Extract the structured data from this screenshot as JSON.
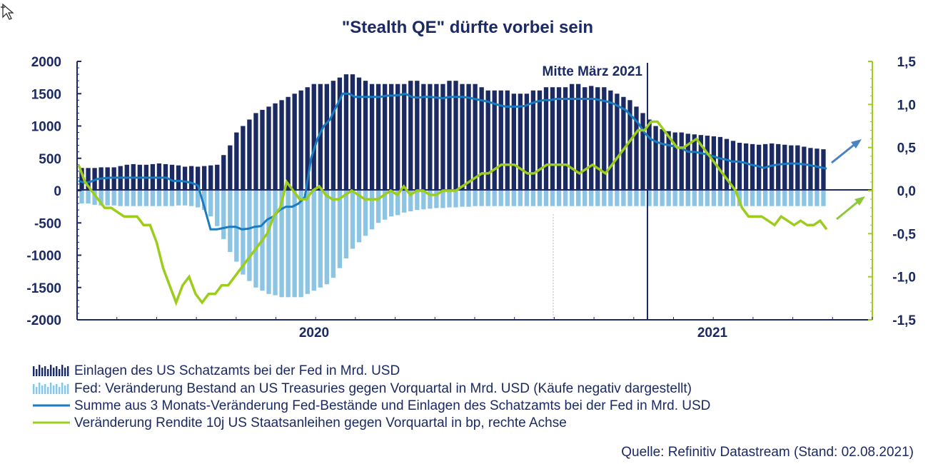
{
  "chart_data": {
    "type": "bar",
    "title": "\"Stealth QE\" dürfte vorbei sein",
    "x_ticks": [
      "2020",
      "2021"
    ],
    "y_left": {
      "ylim": [
        -2000,
        2000
      ],
      "ticks": [
        "2000",
        "1500",
        "1000",
        "500",
        "0",
        "-500",
        "-1000",
        "-1500",
        "-2000"
      ]
    },
    "y_right": {
      "ylim": [
        -1.5,
        1.5
      ],
      "ticks": [
        "1,5",
        "1,0",
        "0,5",
        "0,0",
        "-0,5",
        "-1,0",
        "-1,5"
      ]
    },
    "annotation": "Mitte März 2021",
    "colors": {
      "deposits": "#1b2a63",
      "fed_change": "#8cc4e4",
      "sum": "#1a7bbf",
      "yield": "#9ccc1c",
      "text": "#1b2a63"
    },
    "series": [
      {
        "name": "Einlagen des US Schatzamts bei der Fed in Mrd. USD",
        "kind": "bar",
        "axis": "left",
        "values": [
          350,
          350,
          350,
          360,
          360,
          360,
          380,
          400,
          410,
          400,
          400,
          410,
          420,
          410,
          400,
          390,
          370,
          380,
          370,
          380,
          390,
          400,
          550,
          700,
          900,
          1000,
          1100,
          1200,
          1250,
          1300,
          1350,
          1400,
          1450,
          1500,
          1550,
          1600,
          1650,
          1650,
          1650,
          1700,
          1750,
          1800,
          1800,
          1750,
          1700,
          1650,
          1650,
          1650,
          1650,
          1650,
          1650,
          1700,
          1700,
          1650,
          1650,
          1650,
          1650,
          1700,
          1700,
          1650,
          1650,
          1650,
          1600,
          1550,
          1550,
          1550,
          1550,
          1500,
          1500,
          1500,
          1550,
          1550,
          1600,
          1600,
          1600,
          1600,
          1650,
          1650,
          1600,
          1620,
          1600,
          1600,
          1550,
          1500,
          1450,
          1400,
          1300,
          1200,
          1100,
          1000,
          950,
          920,
          900,
          900,
          880,
          870,
          860,
          850,
          840,
          830,
          800,
          770,
          740,
          730,
          720,
          710,
          720,
          730,
          720,
          710,
          700,
          700,
          680,
          660,
          650,
          640
        ]
      },
      {
        "name": "Fed: Veränderung Bestand an US Treasuries gegen Vorquartal in Mrd. USD (Käufe negativ dargestellt)",
        "kind": "bar",
        "axis": "left",
        "values": [
          -200,
          -200,
          -220,
          -230,
          -230,
          -230,
          -240,
          -240,
          -240,
          -240,
          -240,
          -240,
          -240,
          -240,
          -240,
          -230,
          -230,
          -240,
          -260,
          -300,
          -400,
          -550,
          -750,
          -950,
          -1100,
          -1300,
          -1400,
          -1500,
          -1550,
          -1600,
          -1620,
          -1650,
          -1650,
          -1650,
          -1650,
          -1600,
          -1550,
          -1500,
          -1450,
          -1350,
          -1200,
          -1050,
          -900,
          -800,
          -700,
          -600,
          -500,
          -450,
          -400,
          -380,
          -340,
          -320,
          -300,
          -290,
          -280,
          -270,
          -270,
          -260,
          -260,
          -250,
          -250,
          -240,
          -240,
          -240,
          -240,
          -240,
          -240,
          -240,
          -240,
          -240,
          -240,
          -240,
          -240,
          -240,
          -240,
          -240,
          -240,
          -240,
          -240,
          -240,
          -240,
          -240,
          -240,
          -240,
          -240,
          -240,
          -240,
          -240,
          -240,
          -240,
          -240,
          -240,
          -240,
          -240,
          -240,
          -240,
          -240,
          -240,
          -240,
          -240,
          -240,
          -240,
          -240,
          -240,
          -240,
          -240,
          -240,
          -240,
          -240,
          -240,
          -240,
          -240,
          -240,
          -240,
          -240,
          -240
        ]
      },
      {
        "name": "Summe aus 3 Monats-Veränderung Fed-Bestände und Einlagen des Schatzamts bei der Fed in Mrd. USD",
        "kind": "line",
        "axis": "left",
        "values": [
          150,
          120,
          140,
          180,
          190,
          200,
          200,
          200,
          200,
          200,
          200,
          200,
          200,
          200,
          200,
          150,
          150,
          140,
          120,
          80,
          -250,
          -600,
          -600,
          -580,
          -560,
          -560,
          -600,
          -590,
          -560,
          -550,
          -450,
          -400,
          -300,
          -250,
          -250,
          -200,
          -100,
          500,
          800,
          1000,
          1100,
          1300,
          1500,
          1500,
          1450,
          1450,
          1450,
          1450,
          1450,
          1470,
          1470,
          1480,
          1500,
          1450,
          1440,
          1450,
          1450,
          1440,
          1430,
          1450,
          1450,
          1450,
          1440,
          1420,
          1400,
          1380,
          1350,
          1320,
          1300,
          1300,
          1300,
          1310,
          1350,
          1380,
          1400,
          1400,
          1420,
          1420,
          1420,
          1420,
          1420,
          1420,
          1420,
          1400,
          1380,
          1350,
          1300,
          1250,
          1150,
          1050,
          900,
          800,
          750,
          720,
          700,
          680,
          650,
          600,
          600,
          580,
          560,
          530,
          500,
          480,
          450,
          450,
          430,
          400,
          380,
          350,
          380,
          400,
          410,
          420,
          420,
          410,
          400,
          380,
          360,
          340
        ]
      },
      {
        "name": "Veränderung Rendite 10j US Staatsanleihen gegen Vorquartal in bp, rechte Achse",
        "kind": "line",
        "axis": "right",
        "values": [
          0.3,
          0.1,
          0.0,
          -0.1,
          -0.2,
          -0.2,
          -0.25,
          -0.3,
          -0.3,
          -0.3,
          -0.4,
          -0.4,
          -0.6,
          -0.9,
          -1.1,
          -1.3,
          -1.1,
          -1.0,
          -1.2,
          -1.3,
          -1.2,
          -1.2,
          -1.1,
          -1.1,
          -1.0,
          -0.9,
          -0.8,
          -0.7,
          -0.6,
          -0.5,
          -0.3,
          -0.2,
          0.1,
          0.0,
          -0.1,
          -0.1,
          0.0,
          0.05,
          -0.05,
          -0.1,
          -0.1,
          -0.05,
          0.0,
          -0.05,
          -0.1,
          -0.1,
          -0.1,
          -0.05,
          0.0,
          -0.05,
          0.05,
          -0.05,
          0.0,
          0.0,
          -0.05,
          -0.05,
          0.0,
          0.0,
          0.0,
          0.05,
          0.1,
          0.15,
          0.2,
          0.2,
          0.25,
          0.3,
          0.3,
          0.3,
          0.25,
          0.2,
          0.2,
          0.25,
          0.3,
          0.3,
          0.3,
          0.3,
          0.25,
          0.2,
          0.25,
          0.3,
          0.25,
          0.2,
          0.3,
          0.4,
          0.5,
          0.6,
          0.7,
          0.7,
          0.8,
          0.8,
          0.7,
          0.6,
          0.5,
          0.5,
          0.55,
          0.6,
          0.5,
          0.4,
          0.3,
          0.2,
          0.1,
          0.0,
          -0.2,
          -0.3,
          -0.3,
          -0.3,
          -0.35,
          -0.4,
          -0.3,
          -0.35,
          -0.4,
          -0.35,
          -0.4,
          -0.4,
          -0.35,
          -0.45
        ]
      }
    ]
  },
  "source": "Quelle: Refinitiv Datastream (Stand: 02.08.2021)"
}
